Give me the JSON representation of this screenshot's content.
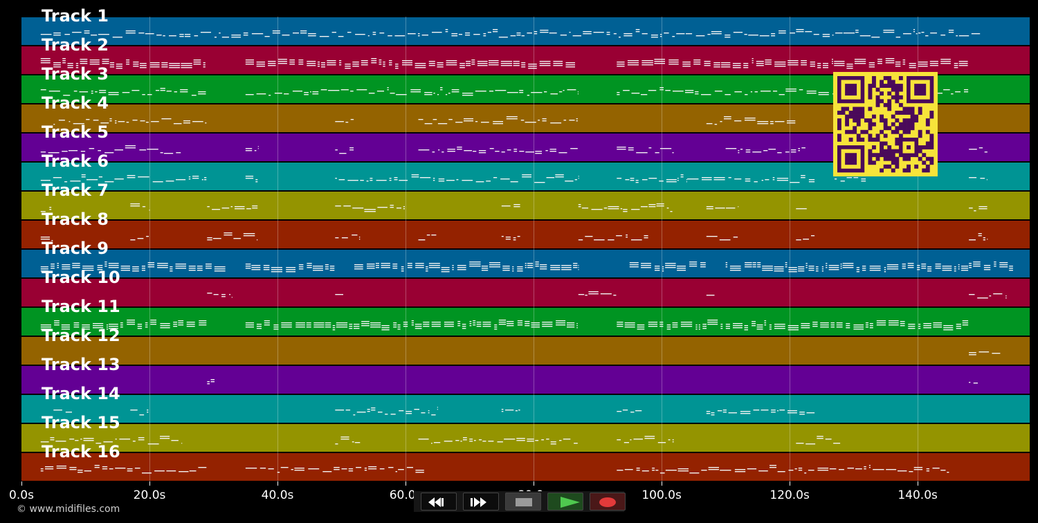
{
  "tracks": [
    {
      "label": "Track 1",
      "color": "#006094"
    },
    {
      "label": "Track 2",
      "color": "#990033"
    },
    {
      "label": "Track 3",
      "color": "#009422"
    },
    {
      "label": "Track 4",
      "color": "#946300"
    },
    {
      "label": "Track 5",
      "color": "#630094"
    },
    {
      "label": "Track 6",
      "color": "#009494"
    },
    {
      "label": "Track 7",
      "color": "#949400"
    },
    {
      "label": "Track 8",
      "color": "#942200"
    },
    {
      "label": "Track 9",
      "color": "#006094"
    },
    {
      "label": "Track 10",
      "color": "#990033"
    },
    {
      "label": "Track 11",
      "color": "#009422"
    },
    {
      "label": "Track 12",
      "color": "#946300"
    },
    {
      "label": "Track 13",
      "color": "#630094"
    },
    {
      "label": "Track 14",
      "color": "#009494"
    },
    {
      "label": "Track 15",
      "color": "#949400"
    },
    {
      "label": "Track 16",
      "color": "#942200"
    }
  ],
  "timeline": {
    "ticks": [
      "0.0s",
      "20.0s",
      "40.0s",
      "60.0s",
      "80.0s",
      "100.0s",
      "120.0s",
      "140.0s"
    ],
    "tick_values": [
      0,
      20,
      40,
      60,
      80,
      100,
      120,
      140
    ],
    "max_seconds": 157.5
  },
  "copyright": "© www.midifiles.com",
  "qr": {
    "foreground": "#4a0a5a",
    "background": "#f7e43a"
  },
  "transport": {
    "buttons": [
      {
        "name": "rewind-button",
        "icon": "rewind-icon"
      },
      {
        "name": "fast-forward-button",
        "icon": "fast-forward-icon"
      },
      {
        "name": "stop-button",
        "icon": "stop-icon"
      },
      {
        "name": "play-button",
        "icon": "play-icon"
      },
      {
        "name": "record-button",
        "icon": "record-icon"
      }
    ]
  }
}
